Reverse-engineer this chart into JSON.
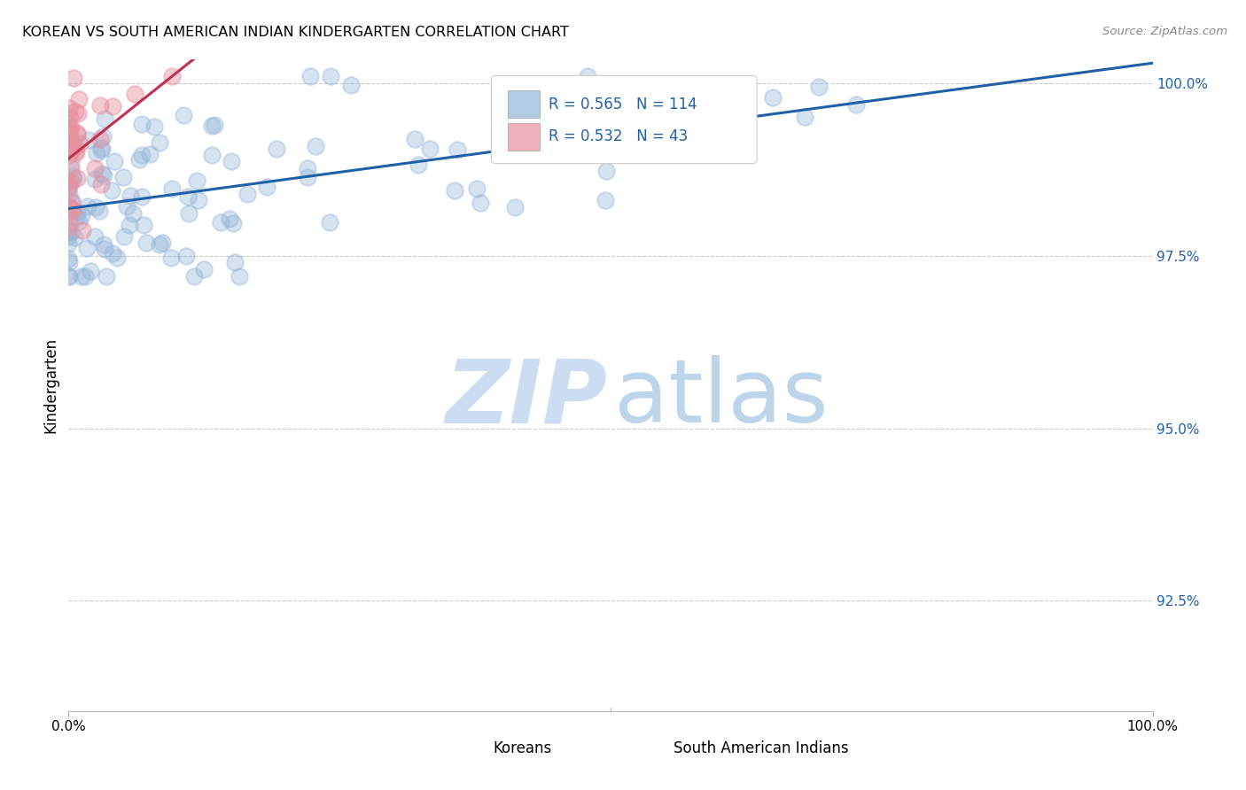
{
  "title": "KOREAN VS SOUTH AMERICAN INDIAN KINDERGARTEN CORRELATION CHART",
  "source": "Source: ZipAtlas.com",
  "ylabel": "Kindergarten",
  "korean_R": 0.565,
  "korean_N": 114,
  "sai_R": 0.532,
  "sai_N": 43,
  "korean_color": "#92b4d8",
  "sai_color": "#e8919f",
  "trendline_korean_color": "#2060a8",
  "trendline_sai_color": "#c03050",
  "y_ticks": [
    0.925,
    0.95,
    0.975,
    1.0
  ],
  "y_tick_labels": [
    "92.5%",
    "95.0%",
    "97.5%",
    "100.0%"
  ],
  "x_lim": [
    0.0,
    1.0
  ],
  "y_lim": [
    0.909,
    1.0035
  ],
  "watermark_zip_color": "#c5d8ef",
  "watermark_atlas_color": "#8ab4d8"
}
